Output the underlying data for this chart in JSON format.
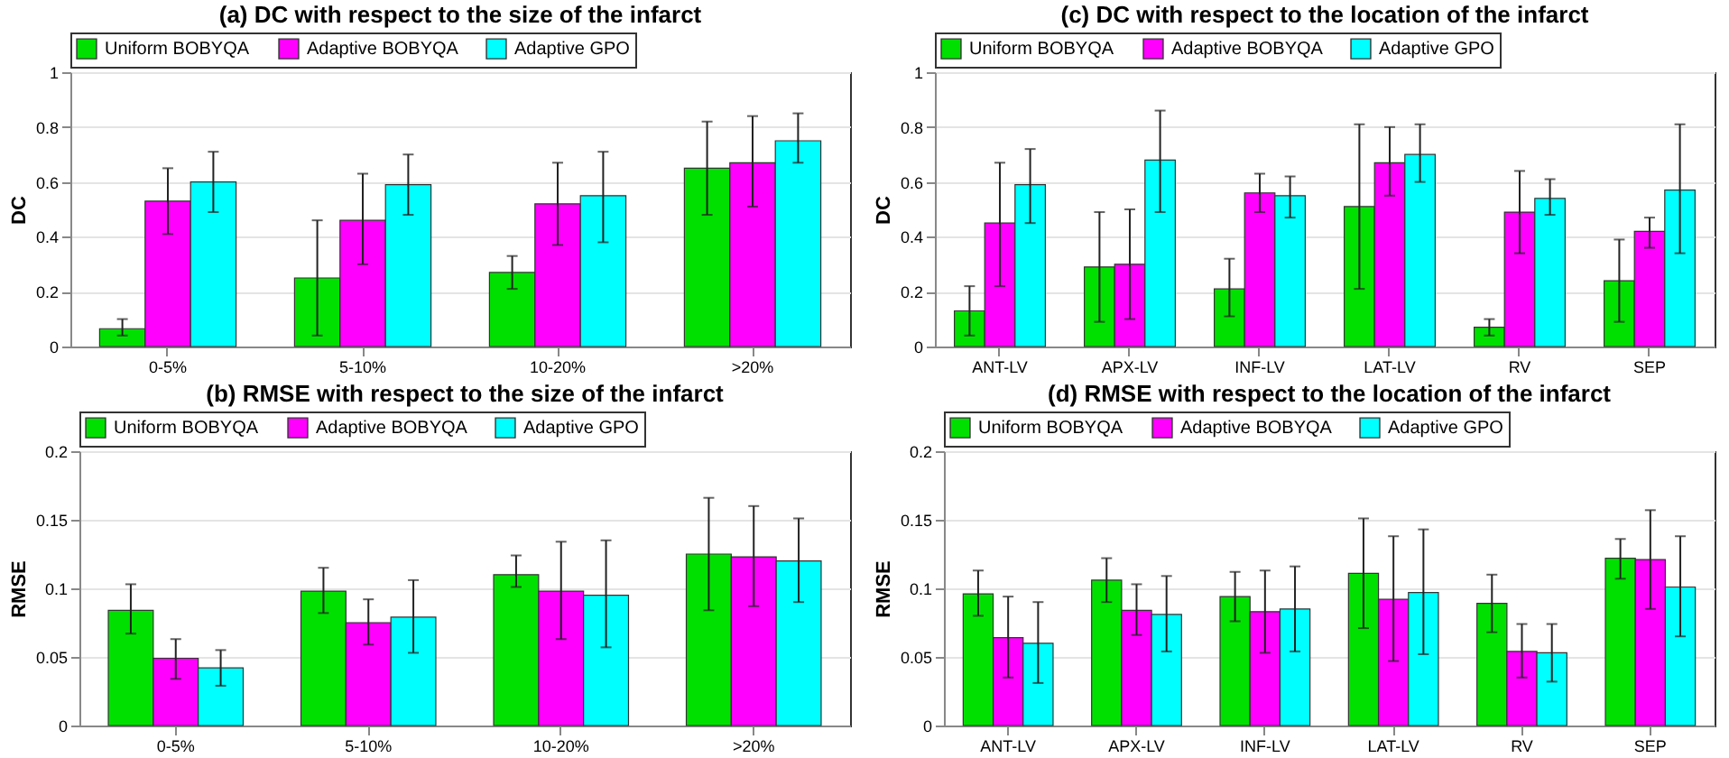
{
  "chart_data": [
    {
      "type": "bar",
      "title": "(a) DC with respect to the size of the infarct",
      "ylabel": "DC",
      "categories": [
        "0-5%",
        "5-10%",
        "10-20%",
        ">20%"
      ],
      "ylim": [
        0,
        1
      ],
      "yticks": [
        0,
        0.2,
        0.4,
        0.6,
        0.8,
        1
      ],
      "grid": "y",
      "legend": "top",
      "series": [
        {
          "name": "Uniform BOBYQA",
          "color": "#00e000",
          "values": [
            0.065,
            0.25,
            0.27,
            0.65
          ],
          "errors": [
            [
              0.04,
              0.1
            ],
            [
              0.04,
              0.46
            ],
            [
              0.21,
              0.33
            ],
            [
              0.48,
              0.82
            ]
          ]
        },
        {
          "name": "Adaptive BOBYQA",
          "color": "#ff00ff",
          "values": [
            0.53,
            0.46,
            0.52,
            0.67
          ],
          "errors": [
            [
              0.41,
              0.65
            ],
            [
              0.3,
              0.63
            ],
            [
              0.37,
              0.67
            ],
            [
              0.51,
              0.84
            ]
          ]
        },
        {
          "name": "Adaptive GPO",
          "color": "#00ffff",
          "values": [
            0.6,
            0.59,
            0.55,
            0.75
          ],
          "errors": [
            [
              0.49,
              0.71
            ],
            [
              0.48,
              0.7
            ],
            [
              0.38,
              0.71
            ],
            [
              0.67,
              0.85
            ]
          ]
        }
      ]
    },
    {
      "type": "bar",
      "title": "(c) DC with respect to the location of the infarct",
      "ylabel": "DC",
      "categories": [
        "ANT-LV",
        "APX-LV",
        "INF-LV",
        "LAT-LV",
        "RV",
        "SEP"
      ],
      "ylim": [
        0,
        1
      ],
      "yticks": [
        0,
        0.2,
        0.4,
        0.6,
        0.8,
        1
      ],
      "grid": "y",
      "legend": "top",
      "series": [
        {
          "name": "Uniform BOBYQA",
          "color": "#00e000",
          "values": [
            0.13,
            0.29,
            0.21,
            0.51,
            0.07,
            0.24
          ],
          "errors": [
            [
              0.04,
              0.22
            ],
            [
              0.09,
              0.49
            ],
            [
              0.11,
              0.32
            ],
            [
              0.21,
              0.81
            ],
            [
              0.04,
              0.1
            ],
            [
              0.09,
              0.39
            ]
          ]
        },
        {
          "name": "Adaptive BOBYQA",
          "color": "#ff00ff",
          "values": [
            0.45,
            0.3,
            0.56,
            0.67,
            0.49,
            0.42
          ],
          "errors": [
            [
              0.22,
              0.67
            ],
            [
              0.1,
              0.5
            ],
            [
              0.49,
              0.63
            ],
            [
              0.55,
              0.8
            ],
            [
              0.34,
              0.64
            ],
            [
              0.36,
              0.47
            ]
          ]
        },
        {
          "name": "Adaptive GPO",
          "color": "#00ffff",
          "values": [
            0.59,
            0.68,
            0.55,
            0.7,
            0.54,
            0.57
          ],
          "errors": [
            [
              0.45,
              0.72
            ],
            [
              0.49,
              0.86
            ],
            [
              0.47,
              0.62
            ],
            [
              0.6,
              0.81
            ],
            [
              0.48,
              0.61
            ],
            [
              0.34,
              0.81
            ]
          ]
        }
      ]
    },
    {
      "type": "bar",
      "title": "(b) RMSE with respect to the size of the infarct",
      "ylabel": "RMSE",
      "categories": [
        "0-5%",
        "5-10%",
        "10-20%",
        ">20%"
      ],
      "ylim": [
        0,
        0.2
      ],
      "yticks": [
        0,
        0.05,
        0.1,
        0.15,
        0.2
      ],
      "grid": "y",
      "legend": "top",
      "series": [
        {
          "name": "Uniform BOBYQA",
          "color": "#00e000",
          "values": [
            0.084,
            0.098,
            0.11,
            0.125
          ],
          "errors": [
            [
              0.067,
              0.103
            ],
            [
              0.082,
              0.115
            ],
            [
              0.101,
              0.124
            ],
            [
              0.084,
              0.166
            ]
          ]
        },
        {
          "name": "Adaptive BOBYQA",
          "color": "#ff00ff",
          "values": [
            0.049,
            0.075,
            0.098,
            0.123
          ],
          "errors": [
            [
              0.034,
              0.063
            ],
            [
              0.059,
              0.092
            ],
            [
              0.063,
              0.134
            ],
            [
              0.087,
              0.16
            ]
          ]
        },
        {
          "name": "Adaptive GPO",
          "color": "#00ffff",
          "values": [
            0.042,
            0.079,
            0.095,
            0.12
          ],
          "errors": [
            [
              0.029,
              0.055
            ],
            [
              0.053,
              0.106
            ],
            [
              0.057,
              0.135
            ],
            [
              0.09,
              0.151
            ]
          ]
        }
      ]
    },
    {
      "type": "bar",
      "title": "(d) RMSE with respect to the location of the infarct",
      "ylabel": "RMSE",
      "categories": [
        "ANT-LV",
        "APX-LV",
        "INF-LV",
        "LAT-LV",
        "RV",
        "SEP"
      ],
      "ylim": [
        0,
        0.2
      ],
      "yticks": [
        0,
        0.05,
        0.1,
        0.15,
        0.2
      ],
      "grid": "y",
      "legend": "top",
      "series": [
        {
          "name": "Uniform BOBYQA",
          "color": "#00e000",
          "values": [
            0.096,
            0.106,
            0.094,
            0.111,
            0.089,
            0.122
          ],
          "errors": [
            [
              0.08,
              0.113
            ],
            [
              0.09,
              0.122
            ],
            [
              0.076,
              0.112
            ],
            [
              0.071,
              0.151
            ],
            [
              0.068,
              0.11
            ],
            [
              0.107,
              0.136
            ]
          ]
        },
        {
          "name": "Adaptive BOBYQA",
          "color": "#ff00ff",
          "values": [
            0.064,
            0.084,
            0.083,
            0.092,
            0.054,
            0.121
          ],
          "errors": [
            [
              0.035,
              0.094
            ],
            [
              0.066,
              0.103
            ],
            [
              0.053,
              0.113
            ],
            [
              0.047,
              0.138
            ],
            [
              0.035,
              0.074
            ],
            [
              0.085,
              0.157
            ]
          ]
        },
        {
          "name": "Adaptive GPO",
          "color": "#00ffff",
          "values": [
            0.06,
            0.081,
            0.085,
            0.097,
            0.053,
            0.101
          ],
          "errors": [
            [
              0.031,
              0.09
            ],
            [
              0.054,
              0.109
            ],
            [
              0.054,
              0.116
            ],
            [
              0.052,
              0.143
            ],
            [
              0.032,
              0.074
            ],
            [
              0.065,
              0.138
            ]
          ]
        }
      ]
    }
  ]
}
